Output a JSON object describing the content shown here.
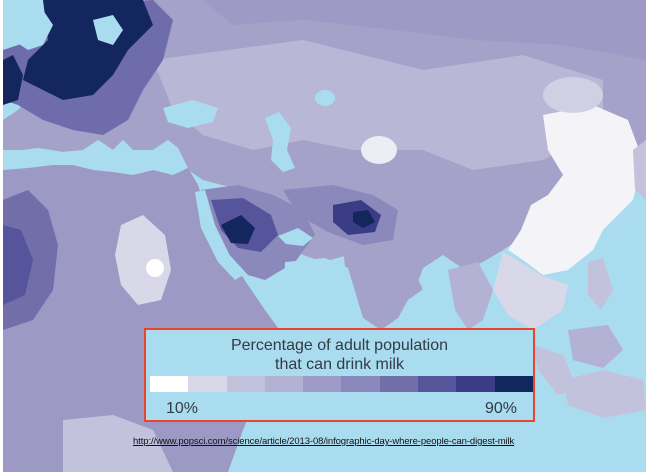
{
  "legend": {
    "title_line1": "Percentage of adult population",
    "title_line2": "that can drink milk",
    "min_label": "10%",
    "max_label": "90%",
    "steps": [
      {
        "color": "#ffffff"
      },
      {
        "color": "#d8d8e8"
      },
      {
        "color": "#c3c2dd"
      },
      {
        "color": "#b3b1d4"
      },
      {
        "color": "#9e9bc7"
      },
      {
        "color": "#8b88bc"
      },
      {
        "color": "#716eaa"
      },
      {
        "color": "#56549a"
      },
      {
        "color": "#3b3c86"
      },
      {
        "color": "#13265e"
      }
    ]
  },
  "source": {
    "link_text": "http://www.popsci.com/science/article/2013-08/infographic-day-where-people-can-digest-milk"
  },
  "colors": {
    "water": "#a9dcef",
    "legend_border": "#e8452b"
  }
}
